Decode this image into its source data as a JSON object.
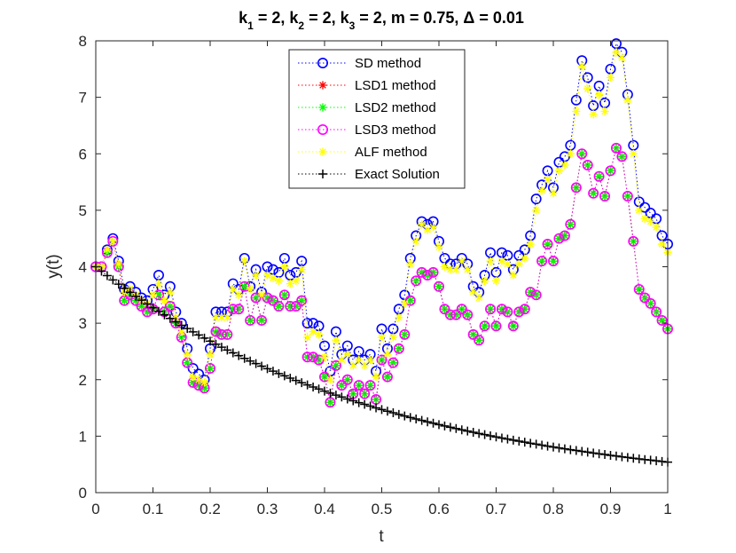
{
  "chart_data": {
    "type": "line",
    "title": {
      "parts": [
        {
          "t": "k"
        },
        {
          "t": "1",
          "sub": true
        },
        {
          "t": " = 2, k"
        },
        {
          "t": "2",
          "sub": true
        },
        {
          "t": " = 2, k"
        },
        {
          "t": "3",
          "sub": true
        },
        {
          "t": " = 2, m = 0.75, Δ = 0.01"
        }
      ]
    },
    "xlabel": "t",
    "ylabel": "y(t)",
    "xlim": [
      0,
      1
    ],
    "ylim": [
      0,
      8
    ],
    "xticks": [
      0,
      0.1,
      0.2,
      0.3,
      0.4,
      0.5,
      0.6,
      0.7,
      0.8,
      0.9,
      1
    ],
    "xtick_labels": [
      "0",
      "0.1",
      "0.2",
      "0.3",
      "0.4",
      "0.5",
      "0.6",
      "0.7",
      "0.8",
      "0.9",
      "1"
    ],
    "yticks": [
      0,
      1,
      2,
      3,
      4,
      5,
      6,
      7,
      8
    ],
    "ytick_labels": [
      "0",
      "1",
      "2",
      "3",
      "4",
      "5",
      "6",
      "7",
      "8"
    ],
    "grid": false,
    "legend_position": "top-center",
    "x_points": 101,
    "x_step": 0.01,
    "series": [
      {
        "name": "SD method",
        "color": "#0000ff",
        "marker": "circle",
        "values": [
          4.0,
          4.0,
          4.3,
          4.5,
          4.1,
          3.6,
          3.65,
          3.55,
          3.45,
          3.4,
          3.6,
          3.85,
          3.5,
          3.65,
          3.2,
          3.0,
          2.55,
          2.2,
          2.1,
          2.0,
          2.55,
          3.2,
          3.2,
          3.2,
          3.7,
          3.6,
          4.15,
          3.65,
          3.95,
          3.55,
          4.0,
          3.95,
          3.9,
          4.15,
          3.85,
          3.9,
          4.1,
          3.0,
          3.0,
          2.95,
          2.6,
          2.15,
          2.85,
          2.45,
          2.6,
          2.35,
          2.5,
          2.35,
          2.45,
          2.15,
          2.9,
          2.55,
          2.9,
          3.25,
          3.5,
          4.15,
          4.55,
          4.8,
          4.75,
          4.8,
          4.45,
          4.15,
          4.05,
          4.05,
          4.15,
          4.05,
          3.65,
          3.55,
          3.85,
          4.25,
          3.9,
          4.25,
          4.2,
          3.95,
          4.2,
          4.3,
          4.55,
          5.2,
          5.45,
          5.7,
          5.4,
          5.85,
          5.95,
          6.15,
          6.95,
          7.65,
          7.35,
          6.85,
          7.2,
          6.9,
          7.5,
          7.95,
          7.8,
          7.05,
          6.15,
          5.15,
          5.05,
          4.95,
          4.85,
          4.55,
          4.4
        ]
      },
      {
        "name": "LSD1 method",
        "color": "#ff0000",
        "marker": "asterisk",
        "values": [
          4.0,
          4.0,
          4.25,
          4.45,
          4.0,
          3.4,
          3.5,
          3.4,
          3.3,
          3.2,
          3.25,
          3.5,
          3.2,
          3.3,
          3.0,
          2.75,
          2.3,
          1.95,
          1.9,
          1.85,
          2.2,
          2.85,
          2.8,
          2.8,
          3.25,
          3.25,
          3.65,
          3.05,
          3.45,
          3.05,
          3.45,
          3.4,
          3.3,
          3.5,
          3.3,
          3.3,
          3.4,
          2.4,
          2.4,
          2.35,
          2.05,
          1.6,
          2.25,
          1.9,
          2.0,
          1.75,
          1.9,
          1.75,
          1.9,
          1.65,
          2.35,
          2.05,
          2.3,
          2.55,
          2.8,
          3.4,
          3.75,
          3.9,
          3.85,
          3.9,
          3.65,
          3.25,
          3.15,
          3.15,
          3.25,
          3.15,
          2.8,
          2.7,
          2.95,
          3.25,
          2.95,
          3.25,
          3.2,
          2.95,
          3.2,
          3.25,
          3.55,
          3.5,
          4.1,
          4.4,
          4.1,
          4.5,
          4.55,
          4.75,
          5.4,
          6.0,
          5.8,
          5.3,
          5.6,
          5.25,
          5.7,
          6.1,
          5.95,
          5.25,
          4.45,
          3.6,
          3.45,
          3.35,
          3.2,
          3.05,
          2.9
        ]
      },
      {
        "name": "LSD2 method",
        "color": "#00ff00",
        "marker": "asterisk",
        "values": [
          4.0,
          4.0,
          4.25,
          4.45,
          4.0,
          3.4,
          3.5,
          3.4,
          3.3,
          3.2,
          3.25,
          3.5,
          3.2,
          3.3,
          3.0,
          2.75,
          2.3,
          1.95,
          1.9,
          1.85,
          2.2,
          2.85,
          2.8,
          2.8,
          3.25,
          3.25,
          3.65,
          3.05,
          3.45,
          3.05,
          3.45,
          3.4,
          3.3,
          3.5,
          3.3,
          3.3,
          3.4,
          2.4,
          2.4,
          2.35,
          2.05,
          1.6,
          2.25,
          1.9,
          2.0,
          1.75,
          1.9,
          1.75,
          1.9,
          1.65,
          2.35,
          2.05,
          2.3,
          2.55,
          2.8,
          3.4,
          3.75,
          3.9,
          3.85,
          3.9,
          3.65,
          3.25,
          3.15,
          3.15,
          3.25,
          3.15,
          2.8,
          2.7,
          2.95,
          3.25,
          2.95,
          3.25,
          3.2,
          2.95,
          3.2,
          3.25,
          3.55,
          3.5,
          4.1,
          4.4,
          4.1,
          4.5,
          4.55,
          4.75,
          5.4,
          6.0,
          5.8,
          5.3,
          5.6,
          5.25,
          5.7,
          6.1,
          5.95,
          5.25,
          4.45,
          3.6,
          3.45,
          3.35,
          3.2,
          3.05,
          2.9
        ]
      },
      {
        "name": "LSD3 method",
        "color": "#ff00ff",
        "marker": "circle",
        "values": [
          4.0,
          4.0,
          4.25,
          4.45,
          4.0,
          3.4,
          3.5,
          3.4,
          3.3,
          3.2,
          3.25,
          3.5,
          3.2,
          3.3,
          3.0,
          2.75,
          2.3,
          1.95,
          1.9,
          1.85,
          2.2,
          2.85,
          2.8,
          2.8,
          3.25,
          3.25,
          3.65,
          3.05,
          3.45,
          3.05,
          3.45,
          3.4,
          3.3,
          3.5,
          3.3,
          3.3,
          3.4,
          2.4,
          2.4,
          2.35,
          2.05,
          1.6,
          2.25,
          1.9,
          2.0,
          1.75,
          1.9,
          1.75,
          1.9,
          1.65,
          2.35,
          2.05,
          2.3,
          2.55,
          2.8,
          3.4,
          3.75,
          3.9,
          3.85,
          3.9,
          3.65,
          3.25,
          3.15,
          3.15,
          3.25,
          3.15,
          2.8,
          2.7,
          2.95,
          3.25,
          2.95,
          3.25,
          3.2,
          2.95,
          3.2,
          3.25,
          3.55,
          3.5,
          4.1,
          4.4,
          4.1,
          4.5,
          4.55,
          4.75,
          5.4,
          6.0,
          5.8,
          5.3,
          5.6,
          5.25,
          5.7,
          6.1,
          5.95,
          5.25,
          4.45,
          3.6,
          3.45,
          3.35,
          3.2,
          3.05,
          2.9
        ]
      },
      {
        "name": "ALF method",
        "color": "#ffff00",
        "marker": "asterisk",
        "values": [
          4.0,
          4.0,
          4.3,
          4.45,
          4.05,
          3.55,
          3.6,
          3.5,
          3.4,
          3.35,
          3.5,
          3.7,
          3.4,
          3.55,
          3.1,
          2.85,
          2.45,
          2.05,
          2.0,
          1.95,
          2.45,
          3.1,
          3.1,
          3.1,
          3.6,
          3.5,
          4.1,
          3.6,
          3.85,
          3.5,
          3.85,
          3.8,
          3.75,
          4.0,
          3.7,
          3.75,
          3.95,
          2.75,
          2.85,
          2.8,
          2.4,
          2.0,
          2.7,
          2.35,
          2.45,
          2.25,
          2.35,
          2.25,
          2.35,
          2.05,
          2.75,
          2.45,
          2.75,
          3.1,
          3.35,
          4.05,
          4.45,
          4.75,
          4.65,
          4.7,
          4.35,
          4.0,
          3.95,
          3.95,
          4.1,
          3.95,
          3.55,
          3.45,
          3.75,
          4.1,
          3.75,
          4.1,
          4.05,
          3.85,
          4.05,
          4.15,
          4.4,
          5.0,
          5.35,
          5.55,
          5.3,
          5.7,
          5.8,
          6.0,
          6.75,
          7.55,
          7.15,
          6.7,
          7.05,
          6.75,
          7.35,
          7.8,
          7.7,
          6.95,
          6.0,
          5.0,
          4.85,
          4.8,
          4.7,
          4.4,
          4.25
        ]
      },
      {
        "name": "Exact Solution",
        "color": "#000000",
        "marker": "plus",
        "values": [
          4.0,
          3.921,
          3.843,
          3.767,
          3.692,
          3.619,
          3.548,
          3.477,
          3.409,
          3.341,
          3.275,
          3.21,
          3.147,
          3.084,
          3.023,
          2.963,
          2.905,
          2.847,
          2.791,
          2.736,
          2.681,
          2.628,
          2.576,
          2.525,
          2.475,
          2.426,
          2.378,
          2.331,
          2.285,
          2.24,
          2.195,
          2.152,
          2.109,
          2.068,
          2.027,
          1.986,
          1.947,
          1.908,
          1.871,
          1.834,
          1.797,
          1.762,
          1.727,
          1.693,
          1.659,
          1.626,
          1.594,
          1.563,
          1.532,
          1.501,
          1.472,
          1.442,
          1.414,
          1.386,
          1.358,
          1.331,
          1.305,
          1.279,
          1.254,
          1.229,
          1.205,
          1.181,
          1.158,
          1.135,
          1.112,
          1.09,
          1.069,
          1.047,
          1.027,
          1.006,
          0.986,
          0.967,
          0.948,
          0.929,
          0.911,
          0.893,
          0.875,
          0.858,
          0.841,
          0.824,
          0.808,
          0.792,
          0.776,
          0.761,
          0.746,
          0.731,
          0.717,
          0.702,
          0.688,
          0.675,
          0.661,
          0.648,
          0.635,
          0.623,
          0.61,
          0.598,
          0.586,
          0.575,
          0.563,
          0.552,
          0.541
        ]
      }
    ]
  }
}
